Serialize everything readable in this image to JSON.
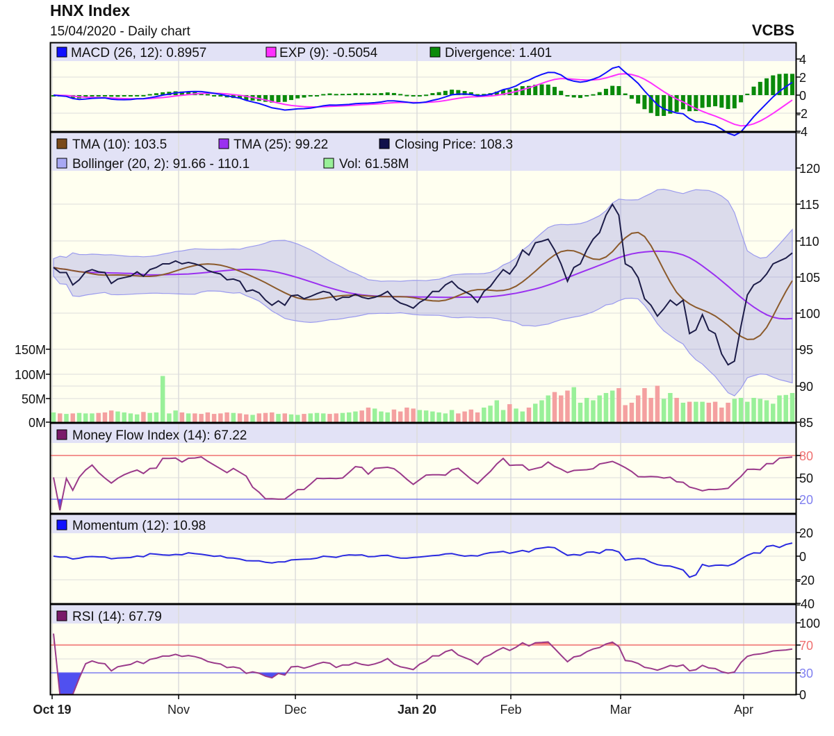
{
  "header": {
    "title": "HNX Index",
    "subtitle": "15/04/2020 - Daily chart",
    "brand": "VCBS"
  },
  "colors": {
    "plot_bg": "#fffff0",
    "legend_bg": "#e2e2f6",
    "close": "#1c1c48",
    "tma10": "#8b5a2b",
    "tma25": "#9a30f0",
    "bollinger": "#9a9aee",
    "vol_up": "#99f099",
    "vol_down": "#f4a0a0",
    "macd": "#1010ff",
    "exp": "#ff30ff",
    "divergence": "#0a8a0a",
    "mfi": "#9a3a8a",
    "momentum": "#2a2ae0",
    "rsi": "#9a3a8a",
    "upper": "#f07070",
    "lower": "#8080f0"
  },
  "chart_data": {
    "type": "line",
    "title": "HNX Index",
    "x_labels": [
      "Oct 19",
      "Nov",
      "Dec",
      "Jan 20",
      "Feb",
      "Mar",
      "Apr"
    ],
    "close": [
      106.3,
      105.6,
      105.6,
      103.9,
      104.6,
      105.7,
      106.0,
      105.7,
      105.6,
      104.1,
      104.7,
      104.9,
      105.1,
      105.7,
      105.1,
      106.0,
      106.3,
      106.8,
      106.8,
      107.2,
      106.8,
      107.0,
      106.8,
      106.5,
      105.9,
      105.6,
      105.4,
      104.6,
      104.7,
      104.4,
      103.0,
      103.2,
      102.8,
      101.8,
      101.1,
      101.7,
      101.1,
      102.4,
      102.5,
      102.0,
      102.3,
      102.7,
      103.0,
      102.8,
      101.8,
      102.2,
      102.2,
      102.6,
      102.2,
      102.0,
      102.2,
      102.5,
      103.0,
      102.0,
      101.4,
      101.1,
      100.7,
      101.5,
      102.0,
      103.0,
      103.0,
      103.9,
      104.4,
      103.5,
      103.0,
      102.5,
      101.5,
      103.0,
      103.7,
      104.9,
      106.0,
      105.4,
      106.6,
      108.7,
      108.0,
      109.7,
      109.9,
      110.2,
      108.7,
      106.8,
      104.4,
      106.3,
      106.8,
      108.7,
      110.2,
      111.1,
      113.5,
      115.0,
      113.5,
      106.8,
      106.3,
      104.9,
      102.0,
      101.1,
      99.6,
      100.6,
      101.8,
      101.1,
      101.8,
      97.2,
      97.7,
      99.8,
      97.7,
      97.2,
      94.4,
      92.9,
      93.4,
      98.2,
      102.5,
      103.9,
      104.4,
      105.4,
      106.8,
      107.2,
      107.6,
      108.3
    ],
    "volume_m": [
      20,
      18,
      17,
      18,
      19,
      18,
      18,
      19,
      20,
      24,
      22,
      20,
      18,
      16,
      21,
      19,
      20,
      95,
      18,
      24,
      20,
      18,
      18,
      17,
      20,
      17,
      18,
      20,
      19,
      18,
      16,
      15,
      18,
      19,
      20,
      17,
      18,
      16,
      15,
      17,
      18,
      19,
      18,
      17,
      18,
      19,
      20,
      22,
      24,
      30,
      28,
      22,
      20,
      26,
      22,
      30,
      28,
      25,
      24,
      22,
      20,
      18,
      25,
      18,
      22,
      26,
      20,
      30,
      34,
      45,
      25,
      37,
      28,
      22,
      30,
      38,
      45,
      55,
      62,
      55,
      65,
      72,
      40,
      50,
      45,
      55,
      60,
      65,
      70,
      35,
      40,
      55,
      70,
      50,
      75,
      48,
      60,
      50,
      40,
      42,
      42,
      42,
      40,
      42,
      30,
      40,
      48,
      50,
      42,
      50,
      48,
      45,
      38,
      55,
      56,
      60
    ],
    "panels": {
      "macd": {
        "legend": [
          {
            "label": "MACD (26, 12): 0.8957",
            "color": "#1010ff"
          },
          {
            "label": "EXP (9): -0.5054",
            "color": "#ff30ff"
          },
          {
            "label": "Divergence: 1.401",
            "color": "#0a8a0a"
          }
        ],
        "ticks": [
          "4",
          "2",
          "0",
          "-2",
          "-4"
        ],
        "ylim": [
          -4,
          4
        ]
      },
      "price": {
        "legend": [
          {
            "label": "TMA (10): 103.5",
            "color": "#7a4a1a"
          },
          {
            "label": "TMA (25): 99.22",
            "color": "#9a30f0"
          },
          {
            "label": "Closing Price: 108.3",
            "color": "#10104a"
          },
          {
            "label": "Bollinger (20, 2): 91.66 - 110.1",
            "color": "#a8a8f4"
          },
          {
            "label": "Vol: 61.58M",
            "color": "#99f099"
          }
        ],
        "ticks": [
          "120",
          "115",
          "110",
          "105",
          "100",
          "95",
          "90",
          "85"
        ],
        "ylim": [
          85,
          120
        ],
        "vol_ticks": [
          "150M",
          "100M",
          "50M",
          "0M"
        ]
      },
      "mfi": {
        "legend": [
          {
            "label": "Money Flow Index (14): 67.22",
            "color": "#7a1a6a"
          }
        ],
        "ticks": [
          "80",
          "50",
          "20"
        ]
      },
      "momentum": {
        "legend": [
          {
            "label": "Momentum (12): 10.98",
            "color": "#1010ff"
          }
        ],
        "ticks": [
          "20",
          "0",
          "-20",
          "-40"
        ],
        "ylim": [
          -40,
          30
        ]
      },
      "rsi": {
        "legend": [
          {
            "label": "RSI (14): 67.79",
            "color": "#7a1a6a"
          }
        ],
        "ticks": [
          "100",
          "70",
          "30",
          "0"
        ]
      }
    }
  }
}
